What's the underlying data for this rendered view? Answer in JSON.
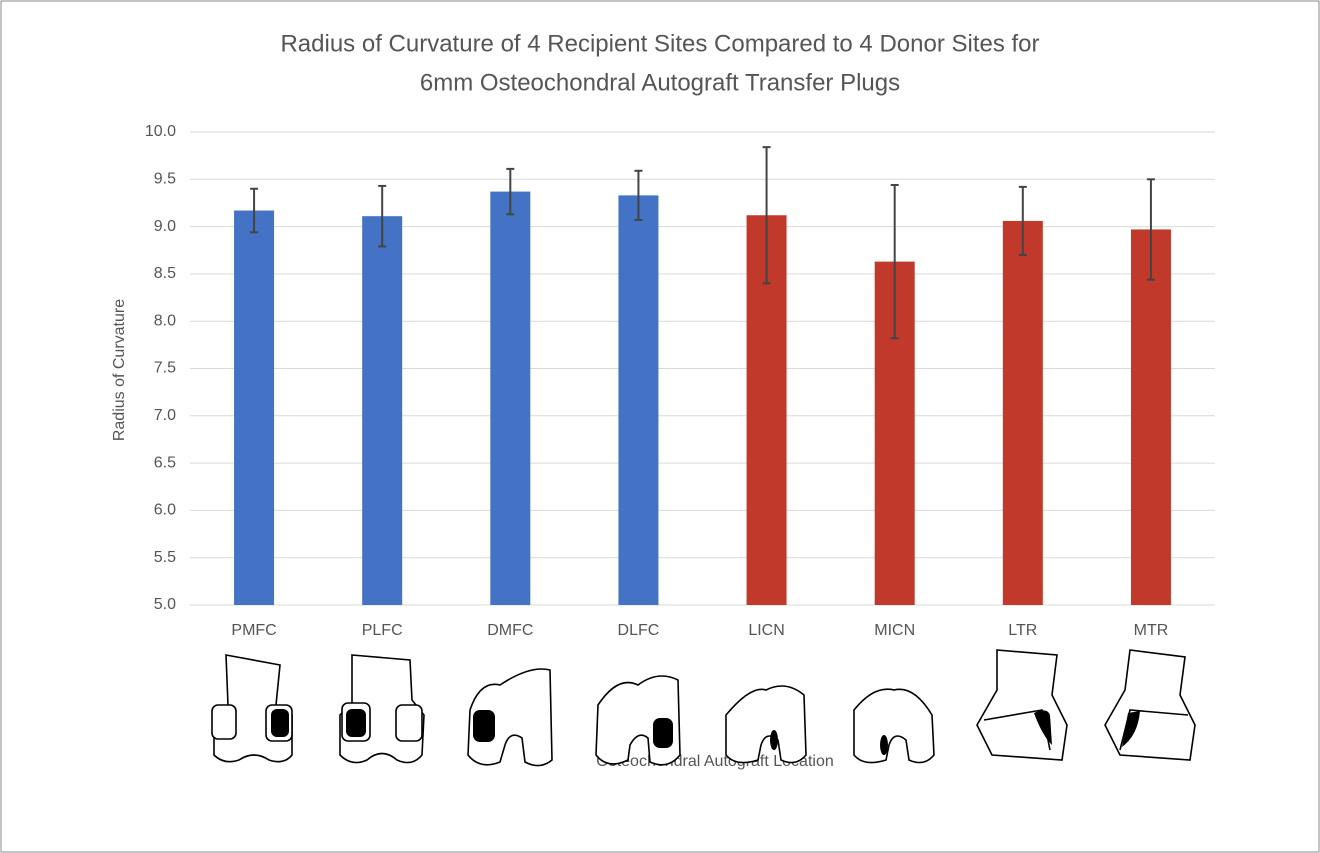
{
  "chart_data": {
    "type": "bar",
    "title": [
      "Radius of Curvature of 4 Recipient Sites Compared to 4 Donor Sites for",
      "6mm Osteochondral Autograft Transfer Plugs"
    ],
    "y_label": "Radius of Curvature",
    "x_label": "Osteochondral Autograft Location",
    "categories": [
      "PMFC",
      "PLFC",
      "DMFC",
      "DLFC",
      "LICN",
      "MICN",
      "LTR",
      "MTR"
    ],
    "values": [
      9.17,
      9.11,
      9.37,
      9.33,
      9.12,
      8.63,
      9.06,
      8.97
    ],
    "errors": [
      0.23,
      0.32,
      0.24,
      0.26,
      0.72,
      0.81,
      0.36,
      0.53
    ],
    "colors": [
      "#4472c4",
      "#4472c4",
      "#4472c4",
      "#4472c4",
      "#c0392b",
      "#c0392b",
      "#c0392b",
      "#c0392b"
    ],
    "ylim": [
      5,
      10
    ],
    "yticks": [
      {
        "value": 5,
        "label": "5.0"
      },
      5.5,
      {
        "value": 6,
        "label": "6.0"
      },
      6.5,
      {
        "value": 7,
        "label": "7.0"
      },
      7.5,
      {
        "value": 8,
        "label": "8.0"
      },
      8.5,
      {
        "value": 9,
        "label": "9.0"
      },
      9.5,
      {
        "value": 10,
        "label": "10.0"
      }
    ],
    "grid": true
  }
}
